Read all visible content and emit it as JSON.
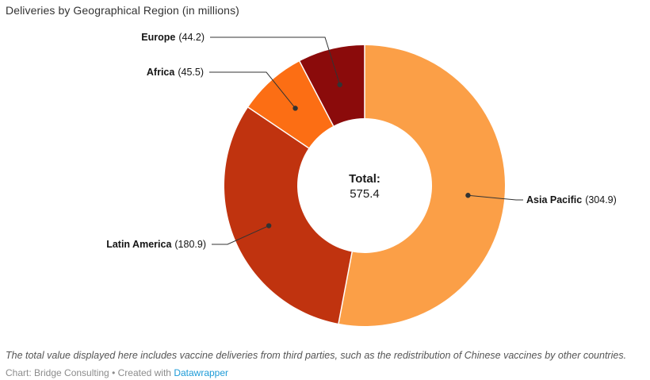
{
  "title": "Deliveries by Geographical Region (in millions)",
  "chart_data": {
    "type": "pie",
    "subtype": "donut",
    "title": "Deliveries by Geographical Region (in millions)",
    "direction": "clockwise",
    "start_angle_deg": 0,
    "total": 575.4,
    "center_label": {
      "line1": "Total:",
      "line2": "575.4"
    },
    "series": [
      {
        "label": "Asia Pacific",
        "value": 304.9,
        "value_display": "(304.9)",
        "color": "#FB9F47"
      },
      {
        "label": "Latin America",
        "value": 180.9,
        "value_display": "(180.9)",
        "color": "#C0330F"
      },
      {
        "label": "Africa",
        "value": 45.5,
        "value_display": "(45.5)",
        "color": "#FC6E14"
      },
      {
        "label": "Europe",
        "value": 44.2,
        "value_display": "(44.2)",
        "color": "#8B0B0B"
      }
    ],
    "separator_color": "#ffffff",
    "leader_line_color": "#333333",
    "labels_show_values": true,
    "legend": "callout-labels"
  },
  "footnote": "The total value displayed here includes vaccine deliveries from third parties, such as the redistribution of Chinese vaccines by other countries.",
  "byline": {
    "prefix": "Chart: Bridge Consulting • Created with ",
    "link_text": "Datawrapper",
    "link_color": "#1D9BD7"
  }
}
